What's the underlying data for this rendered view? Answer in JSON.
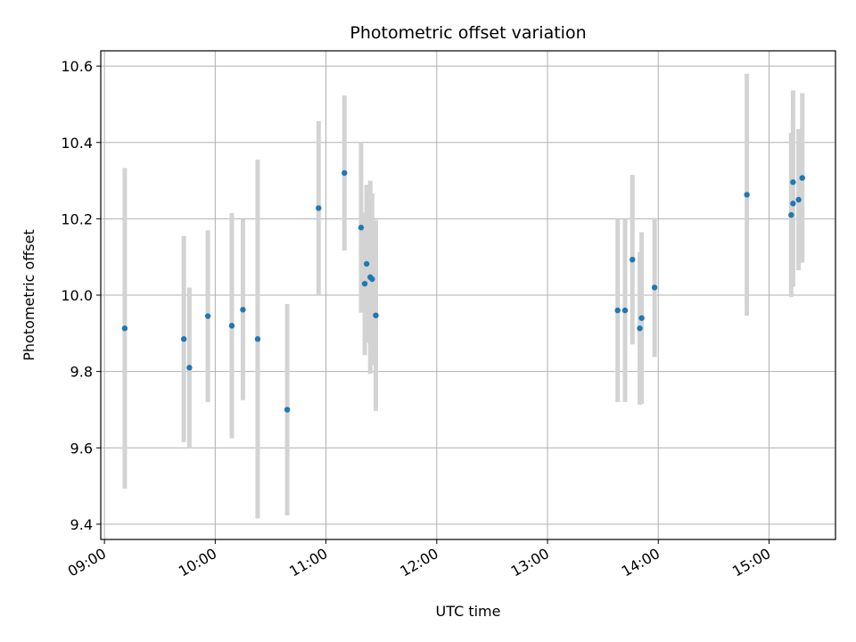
{
  "chart_data": {
    "type": "scatter",
    "title": "Photometric offset variation",
    "xlabel": "UTC time",
    "ylabel": "Photometric offset",
    "x_is_time": true,
    "xlim": [
      "08:58",
      "15:36"
    ],
    "ylim": [
      9.36,
      10.64
    ],
    "x_ticks": [
      "09:00",
      "10:00",
      "11:00",
      "12:00",
      "13:00",
      "14:00",
      "15:00"
    ],
    "y_ticks": [
      9.4,
      9.6,
      9.8,
      10.0,
      10.2,
      10.4,
      10.6
    ],
    "y_tick_labels": [
      "9.4",
      "9.6",
      "9.8",
      "10.0",
      "10.2",
      "10.4",
      "10.6"
    ],
    "grid": true,
    "legend": false,
    "colors": {
      "point": "#1f77b4",
      "errorbar": "#d3d3d3",
      "grid": "#b0b0b0"
    },
    "points": [
      {
        "time": "09:11",
        "y": 9.913,
        "err": 0.42
      },
      {
        "time": "09:43",
        "y": 9.885,
        "err": 0.27
      },
      {
        "time": "09:46",
        "y": 9.81,
        "err": 0.21
      },
      {
        "time": "09:56",
        "y": 9.945,
        "err": 0.225
      },
      {
        "time": "10:09",
        "y": 9.92,
        "err": 0.295
      },
      {
        "time": "10:15",
        "y": 9.962,
        "err": 0.237
      },
      {
        "time": "10:23",
        "y": 9.885,
        "err": 0.47
      },
      {
        "time": "10:39",
        "y": 9.7,
        "err": 0.277
      },
      {
        "time": "10:56",
        "y": 10.228,
        "err": 0.228
      },
      {
        "time": "11:10",
        "y": 10.32,
        "err": 0.203
      },
      {
        "time": "11:19",
        "y": 10.177,
        "err": 0.223
      },
      {
        "time": "11:21",
        "y": 10.03,
        "err": 0.187
      },
      {
        "time": "11:22",
        "y": 10.082,
        "err": 0.207
      },
      {
        "time": "11:24",
        "y": 10.047,
        "err": 0.253
      },
      {
        "time": "11:25",
        "y": 10.042,
        "err": 0.225
      },
      {
        "time": "11:27",
        "y": 9.947,
        "err": 0.25
      },
      {
        "time": "13:38",
        "y": 9.96,
        "err": 0.24
      },
      {
        "time": "13:42",
        "y": 9.96,
        "err": 0.24
      },
      {
        "time": "13:46",
        "y": 10.093,
        "err": 0.222
      },
      {
        "time": "13:50",
        "y": 9.913,
        "err": 0.2
      },
      {
        "time": "13:51",
        "y": 9.94,
        "err": 0.225
      },
      {
        "time": "13:58",
        "y": 10.02,
        "err": 0.182
      },
      {
        "time": "14:48",
        "y": 10.263,
        "err": 0.317
      },
      {
        "time": "15:12",
        "y": 10.21,
        "err": 0.215
      },
      {
        "time": "15:13",
        "y": 10.24,
        "err": 0.218
      },
      {
        "time": "15:13",
        "y": 10.296,
        "err": 0.24
      },
      {
        "time": "15:16",
        "y": 10.25,
        "err": 0.185
      },
      {
        "time": "15:18",
        "y": 10.307,
        "err": 0.222
      }
    ]
  }
}
